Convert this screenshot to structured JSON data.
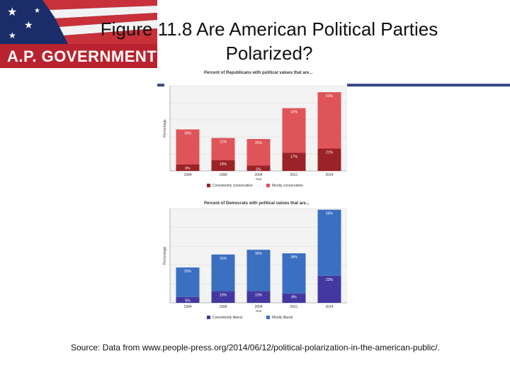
{
  "slide": {
    "banner_label": "A.P. GOVERNMENT",
    "title_line1": "Figure 11.8 Are American Political Parties",
    "title_line2": "Polarized?",
    "source": "Source: Data from www.people-press.org/2014/06/12/political-polarization-in-the-american-public/."
  },
  "colors": {
    "rep_dark": "#9b2226",
    "rep_light": "#de5459",
    "dem_dark": "#4338a0",
    "dem_light": "#3a6fc1",
    "banner_blue": "#1b2c6b",
    "banner_red": "#b8232f"
  },
  "chart_data": [
    {
      "type": "bar",
      "stacked": true,
      "title": "Percent of Republicans with political values that are...",
      "xlabel": "Year",
      "ylabel": "Percentage",
      "categories": [
        "1994",
        "1999",
        "2004",
        "2011",
        "2014"
      ],
      "series": [
        {
          "name": "Consistently conservative",
          "values": [
            6,
            10,
            5,
            17,
            21
          ],
          "labels": [
            "6%",
            "10%",
            "5%",
            "17%",
            "21%"
          ]
        },
        {
          "name": "Mostly conservative",
          "values": [
            33,
            21,
            25,
            42,
            53
          ],
          "labels": [
            "33%",
            "21%",
            "25%",
            "42%",
            "53%"
          ]
        }
      ],
      "legend": "bottom",
      "grid": true
    },
    {
      "type": "bar",
      "stacked": true,
      "title": "Percent of Democrats with political values that are...",
      "xlabel": "Year",
      "ylabel": "Percentage",
      "categories": [
        "1994",
        "1999",
        "2004",
        "2011",
        "2014"
      ],
      "series": [
        {
          "name": "Consistently liberal",
          "values": [
            5,
            10,
            10,
            8,
            23
          ],
          "labels": [
            "5%",
            "10%",
            "10%",
            "8%",
            "23%"
          ]
        },
        {
          "name": "Mostly liberal",
          "values": [
            25,
            31,
            35,
            34,
            56
          ],
          "labels": [
            "25%",
            "31%",
            "35%",
            "34%",
            "56%"
          ]
        }
      ],
      "legend": "bottom",
      "grid": true
    }
  ]
}
